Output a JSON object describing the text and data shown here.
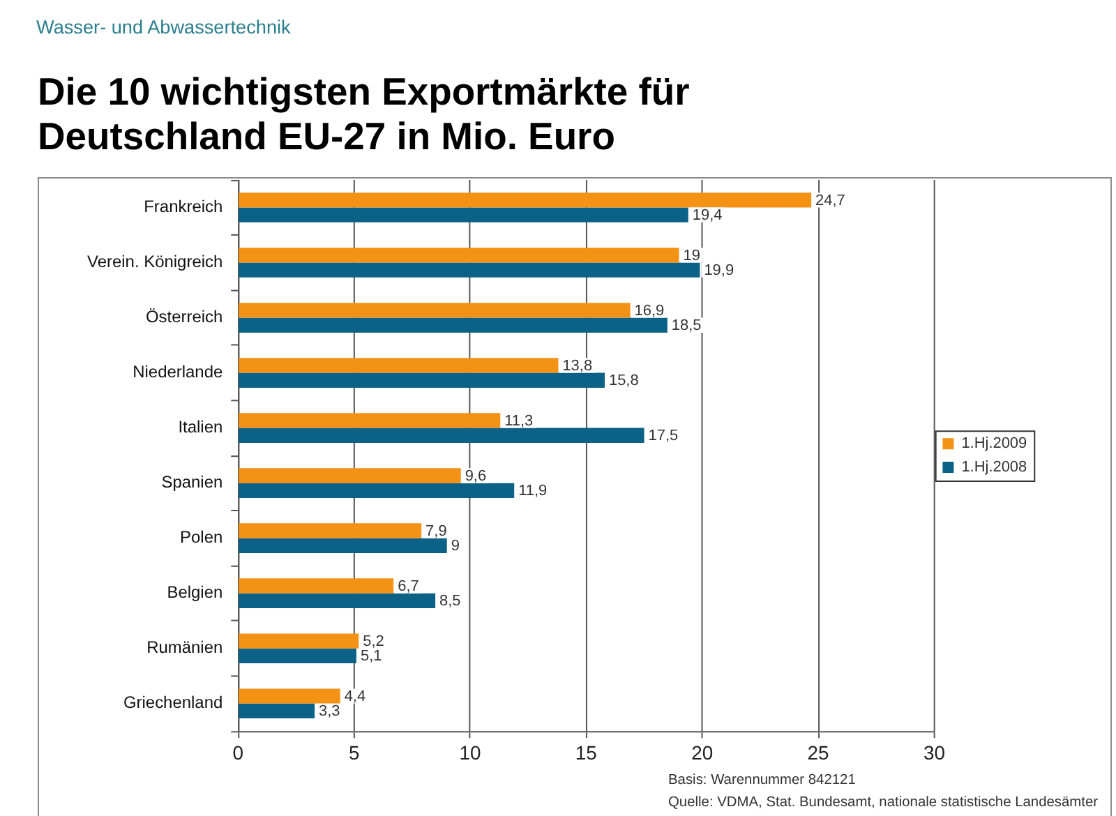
{
  "chart_data": {
    "type": "bar",
    "orientation": "horizontal",
    "subtitle": "Wasser- und Abwassertechnik",
    "title": "Die 10 wichtigsten Exportmärkte für Deutschland EU-27 in Mio. Euro",
    "categories": [
      "Frankreich",
      "Verein. Königreich",
      "Österreich",
      "Niederlande",
      "Italien",
      "Spanien",
      "Polen",
      "Belgien",
      "Rumänien",
      "Griechenland"
    ],
    "series": [
      {
        "name": "1.Hj.2009",
        "color": "#f39214",
        "values": [
          24.7,
          19,
          16.9,
          13.8,
          11.3,
          9.6,
          7.9,
          6.7,
          5.2,
          4.4
        ],
        "value_labels": [
          "24,7",
          "19",
          "16,9",
          "13,8",
          "11,3",
          "9,6",
          "7,9",
          "6,7",
          "5,2",
          "4,4"
        ]
      },
      {
        "name": "1.Hj.2008",
        "color": "#0b6186",
        "values": [
          19.4,
          19.9,
          18.5,
          15.8,
          17.5,
          11.9,
          9,
          8.5,
          5.1,
          3.3
        ],
        "value_labels": [
          "19,4",
          "19,9",
          "18,5",
          "15,8",
          "17,5",
          "11,9",
          "9",
          "8,5",
          "5,1",
          "3,3"
        ]
      }
    ],
    "xlim": [
      0,
      30
    ],
    "xticks": [
      0,
      5,
      10,
      15,
      20,
      25,
      30
    ],
    "grid": "x",
    "legend": "right",
    "annotations": [
      "Basis: Warennummer 842121",
      "Quelle: VDMA, Stat. Bundesamt, nationale statistische Landesämter"
    ]
  }
}
